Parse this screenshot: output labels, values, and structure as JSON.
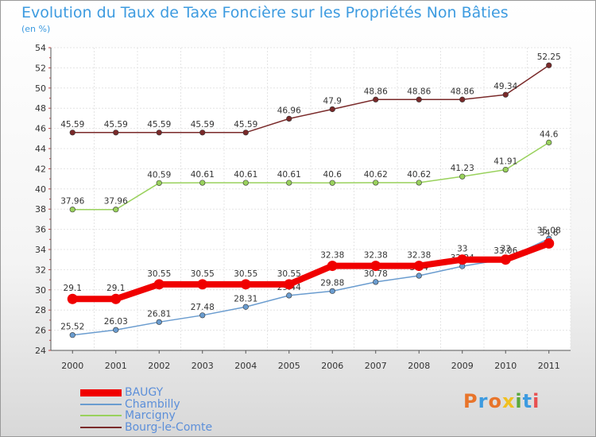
{
  "title": "Evolution du Taux de Taxe Foncière sur les Propriétés Non Bâties",
  "unit_label": "(en %)",
  "logo": {
    "text": "Proxiti",
    "colors": [
      "#e8742a",
      "#3d9be0",
      "#e8742a",
      "#f0c020",
      "#5aa83c",
      "#3d9be0",
      "#e85050"
    ]
  },
  "chart_data": {
    "type": "line",
    "categories": [
      "2000",
      "2001",
      "2002",
      "2003",
      "2004",
      "2005",
      "2006",
      "2007",
      "2008",
      "2009",
      "2010",
      "2011"
    ],
    "ylim": [
      24,
      54
    ],
    "yticks": [
      24,
      26,
      28,
      30,
      32,
      34,
      36,
      38,
      40,
      42,
      44,
      46,
      48,
      50,
      52,
      54
    ],
    "grid": "horizontal-and-vertical",
    "legend_position": "bottom-left",
    "series": [
      {
        "name": "Bourg-le-Comte",
        "color": "#7a2a2a",
        "emphasis": false,
        "values": [
          45.59,
          45.59,
          45.59,
          45.59,
          45.59,
          46.96,
          47.9,
          48.86,
          48.86,
          48.86,
          49.34,
          52.25
        ],
        "labels": [
          "45.59",
          "45.59",
          "45.59",
          "45.59",
          "45.59",
          "46.96",
          "47.9",
          "48.86",
          "48.86",
          "48.86",
          "49.34",
          "52.25"
        ]
      },
      {
        "name": "Marcigny",
        "color": "#99d15c",
        "emphasis": false,
        "values": [
          37.96,
          37.96,
          40.59,
          40.61,
          40.61,
          40.61,
          40.6,
          40.62,
          40.62,
          41.23,
          41.91,
          44.6
        ],
        "labels": [
          "37.96",
          "37.96",
          "40.59",
          "40.61",
          "40.61",
          "40.61",
          "40.6",
          "40.62",
          "40.62",
          "41.23",
          "41.91",
          "44.6"
        ]
      },
      {
        "name": "Chambilly",
        "color": "#6a9ccf",
        "emphasis": false,
        "values": [
          25.52,
          26.03,
          26.81,
          27.48,
          28.31,
          29.44,
          29.88,
          30.78,
          31.4,
          32.34,
          33.06,
          35.08
        ],
        "labels": [
          "25.52",
          "26.03",
          "26.81",
          "27.48",
          "28.31",
          "29.44",
          "29.88",
          "30.78",
          "31.4",
          "32.34",
          "33.06",
          "35.08"
        ]
      },
      {
        "name": "BAUGY",
        "color": "#f00000",
        "emphasis": true,
        "values": [
          29.1,
          29.1,
          30.55,
          30.55,
          30.55,
          30.55,
          32.38,
          32.38,
          32.38,
          33,
          33,
          34.6
        ],
        "labels": [
          "29.1",
          "29.1",
          "30.55",
          "30.55",
          "30.55",
          "30.55",
          "32.38",
          "32.38",
          "32.38",
          "33",
          "33",
          "34.6"
        ]
      }
    ],
    "legend": [
      "BAUGY",
      "Chambilly",
      "Marcigny",
      "Bourg-le-Comte"
    ]
  }
}
